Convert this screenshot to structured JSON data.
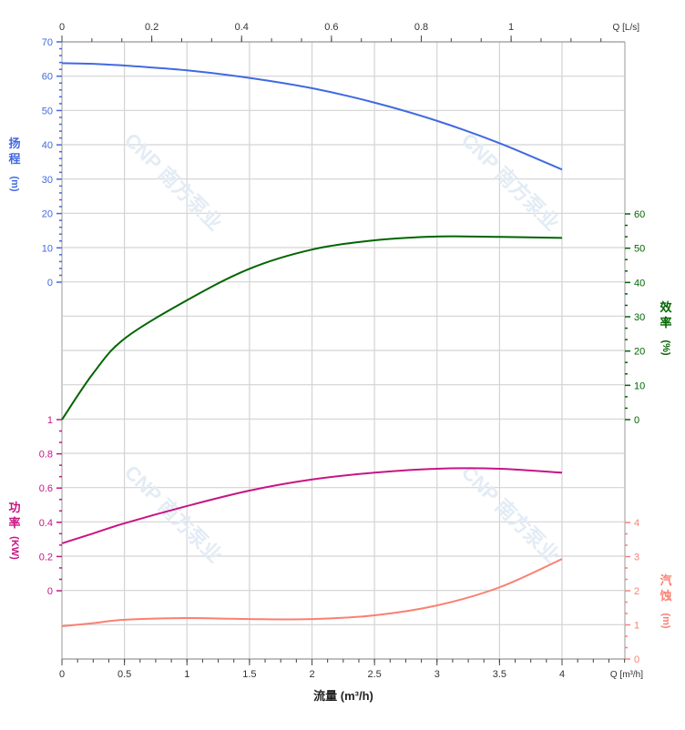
{
  "chart_data": {
    "type": "line",
    "xlabel": "流量 (m³/h)",
    "x_unit_label": "Q [m³/h]",
    "x_top_unit_label": "Q [L/s]",
    "xlim": [
      0,
      4.5
    ],
    "x_ticks": [
      "0",
      "0.5",
      "1",
      "1.5",
      "2",
      "2.5",
      "3",
      "3.5",
      "4"
    ],
    "x_top_ticks": [
      "0",
      "0.2",
      "0.4",
      "0.6",
      "0.8",
      "1"
    ],
    "grid": true,
    "watermark": "CNP 南方泵业",
    "axes": {
      "head": {
        "label": [
          "扬",
          "程",
          "(m)"
        ],
        "ylim": [
          0,
          70
        ],
        "ticks": [
          0,
          10,
          20,
          30,
          40,
          50,
          60,
          70
        ],
        "side": "left",
        "color": "#4169e1"
      },
      "efficiency": {
        "label": [
          "效",
          "率",
          "(%)"
        ],
        "ylim": [
          0,
          60
        ],
        "ticks": [
          0,
          10,
          20,
          30,
          40,
          50,
          60
        ],
        "side": "right",
        "color": "#006400"
      },
      "power": {
        "label": [
          "功",
          "率",
          "(KW)"
        ],
        "ylim": [
          0,
          1
        ],
        "ticks": [
          "0",
          "0.2",
          "0.4",
          "0.6",
          "0.8",
          "1"
        ],
        "side": "left",
        "color": "#c71585"
      },
      "npsh": {
        "label": [
          "汽",
          "蚀",
          "(m)"
        ],
        "ylim": [
          0,
          4
        ],
        "ticks": [
          0,
          1,
          2,
          3,
          4
        ],
        "side": "right",
        "color": "#fa8072"
      }
    },
    "x": [
      0,
      0.25,
      0.5,
      1,
      1.5,
      2,
      2.5,
      3,
      3.5,
      4
    ],
    "series": [
      {
        "axis": "head",
        "values": [
          63.8,
          63.6,
          63.1,
          61.7,
          59.5,
          56.5,
          52.3,
          47.0,
          40.5,
          32.8
        ]
      },
      {
        "axis": "efficiency",
        "values": [
          0,
          13.5,
          23.6,
          34.8,
          44.0,
          49.6,
          52.3,
          53.4,
          53.3,
          53.0
        ]
      },
      {
        "axis": "power",
        "values": [
          0.277,
          0.335,
          0.394,
          0.495,
          0.585,
          0.65,
          0.69,
          0.713,
          0.713,
          0.69
        ]
      },
      {
        "axis": "npsh",
        "values": [
          0.96,
          1.05,
          1.15,
          1.2,
          1.17,
          1.17,
          1.28,
          1.57,
          2.1,
          2.93
        ]
      }
    ]
  }
}
